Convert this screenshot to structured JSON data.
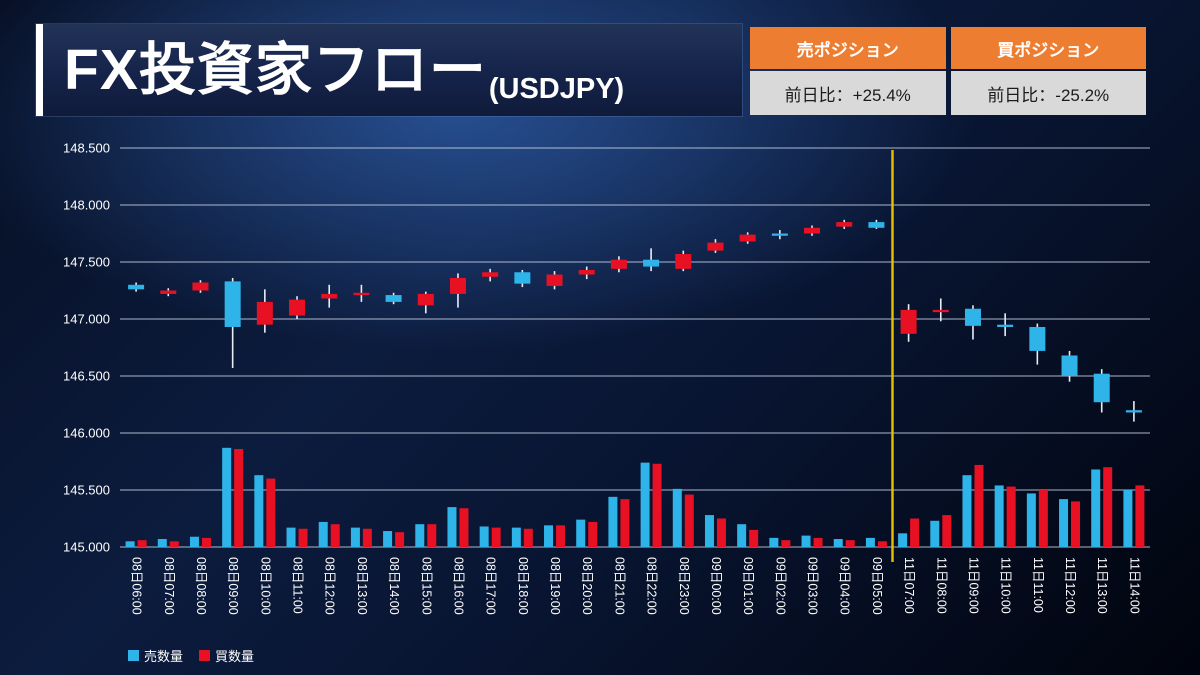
{
  "header": {
    "title": "FX投資家フロー",
    "title_suffix": "(USDJPY)",
    "tables": [
      {
        "header": "売ポジション",
        "value": "前日比：+25.4%"
      },
      {
        "header": "買ポジション",
        "value": "前日比：-25.2%"
      }
    ]
  },
  "legend": [
    {
      "label": "売数量",
      "color": "#2fb4ea"
    },
    {
      "label": "買数量",
      "color": "#e81123"
    }
  ],
  "colors": {
    "up_red": "#e81123",
    "down_blue": "#2fb4ea",
    "wick": "#e9eef6",
    "grid": "#c9d4e8",
    "axis_text": "#ffffff",
    "separator_yellow": "#e8c000",
    "table_header_orange": "#ed7d31",
    "table_cell_gray": "#d9d9d9"
  },
  "chart_data": {
    "type": "candlestick+bar",
    "title": "FX投資家フロー(USDJPY)",
    "ylim": [
      145.0,
      148.5
    ],
    "yticks": [
      145.0,
      145.5,
      146.0,
      146.5,
      147.0,
      147.5,
      148.0,
      148.5
    ],
    "grid": true,
    "separator_after_index": 23,
    "categories": [
      "08日06:00",
      "08日07:00",
      "08日08:00",
      "08日09:00",
      "08日10:00",
      "08日11:00",
      "08日12:00",
      "08日13:00",
      "08日14:00",
      "08日15:00",
      "08日16:00",
      "08日17:00",
      "08日18:00",
      "08日19:00",
      "08日20:00",
      "08日21:00",
      "08日22:00",
      "08日23:00",
      "09日00:00",
      "09日01:00",
      "09日02:00",
      "09日03:00",
      "09日04:00",
      "09日05:00",
      "11日07:00",
      "11日08:00",
      "11日09:00",
      "11日10:00",
      "11日11:00",
      "11日12:00",
      "11日13:00",
      "11日14:00"
    ],
    "candles_ohlc": [
      [
        147.3,
        147.32,
        147.24,
        147.26
      ],
      [
        147.22,
        147.27,
        147.2,
        147.25
      ],
      [
        147.25,
        147.34,
        147.23,
        147.32
      ],
      [
        147.33,
        147.36,
        146.57,
        146.93
      ],
      [
        146.95,
        147.26,
        146.88,
        147.15
      ],
      [
        147.03,
        147.2,
        147.0,
        147.17
      ],
      [
        147.18,
        147.3,
        147.1,
        147.22
      ],
      [
        147.21,
        147.3,
        147.15,
        147.23
      ],
      [
        147.21,
        147.23,
        147.13,
        147.15
      ],
      [
        147.12,
        147.24,
        147.05,
        147.22
      ],
      [
        147.22,
        147.4,
        147.1,
        147.36
      ],
      [
        147.37,
        147.44,
        147.33,
        147.41
      ],
      [
        147.41,
        147.43,
        147.28,
        147.31
      ],
      [
        147.29,
        147.42,
        147.26,
        147.39
      ],
      [
        147.39,
        147.46,
        147.35,
        147.43
      ],
      [
        147.44,
        147.55,
        147.41,
        147.52
      ],
      [
        147.52,
        147.62,
        147.42,
        147.46
      ],
      [
        147.44,
        147.6,
        147.42,
        147.57
      ],
      [
        147.6,
        147.7,
        147.58,
        147.67
      ],
      [
        147.68,
        147.76,
        147.66,
        147.74
      ],
      [
        147.75,
        147.78,
        147.7,
        147.73
      ],
      [
        147.75,
        147.82,
        147.73,
        147.8
      ],
      [
        147.81,
        147.87,
        147.79,
        147.85
      ],
      [
        147.85,
        147.87,
        147.79,
        147.8
      ],
      [
        146.87,
        147.13,
        146.8,
        147.08
      ],
      [
        147.06,
        147.18,
        146.98,
        147.08
      ],
      [
        147.09,
        147.12,
        146.82,
        146.94
      ],
      [
        146.95,
        147.05,
        146.85,
        146.93
      ],
      [
        146.93,
        146.96,
        146.6,
        146.72
      ],
      [
        146.68,
        146.72,
        146.45,
        146.5
      ],
      [
        146.52,
        146.56,
        146.18,
        146.27
      ],
      [
        146.2,
        146.28,
        146.1,
        146.18
      ]
    ],
    "bars": {
      "series": [
        {
          "name": "売数量",
          "values": [
            145.05,
            145.07,
            145.09,
            145.87,
            145.63,
            145.17,
            145.22,
            145.17,
            145.14,
            145.2,
            145.35,
            145.18,
            145.17,
            145.19,
            145.24,
            145.44,
            145.74,
            145.51,
            145.28,
            145.2,
            145.08,
            145.1,
            145.07,
            145.08,
            145.12,
            145.23,
            145.63,
            145.54,
            145.47,
            145.42,
            145.68,
            145.5
          ]
        },
        {
          "name": "買数量",
          "values": [
            145.06,
            145.05,
            145.08,
            145.86,
            145.6,
            145.16,
            145.2,
            145.16,
            145.13,
            145.2,
            145.34,
            145.17,
            145.16,
            145.19,
            145.22,
            145.42,
            145.73,
            145.46,
            145.25,
            145.15,
            145.06,
            145.08,
            145.06,
            145.05,
            145.25,
            145.28,
            145.72,
            145.53,
            145.5,
            145.4,
            145.7,
            145.54
          ]
        }
      ],
      "baseline": 145.0
    }
  }
}
